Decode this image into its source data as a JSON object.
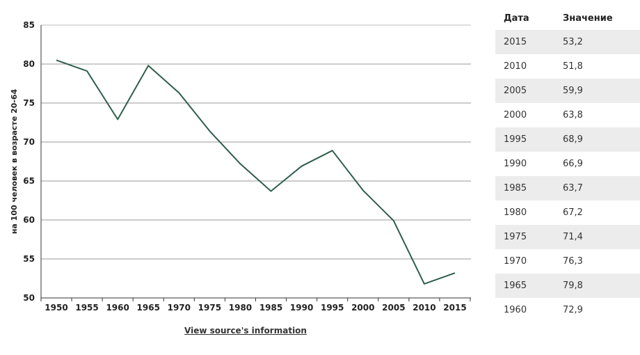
{
  "chart_data": {
    "type": "line",
    "ylabel": "на 100 человек в возрасте 20-64",
    "xlabel": "",
    "x": [
      "1950",
      "1955",
      "1960",
      "1965",
      "1970",
      "1975",
      "1980",
      "1985",
      "1990",
      "1995",
      "2000",
      "2005",
      "2010",
      "2015"
    ],
    "series": [
      {
        "values": [
          80.5,
          79.1,
          72.9,
          79.8,
          76.3,
          71.4,
          67.2,
          63.7,
          66.9,
          68.9,
          63.8,
          59.9,
          51.8,
          53.2
        ]
      }
    ],
    "ylim": [
      50,
      85
    ],
    "yticks": [
      50,
      55,
      60,
      65,
      70,
      75,
      80,
      85
    ],
    "grid": true,
    "line_color": "#2e5e4a"
  },
  "source_link": "View source's information",
  "table": {
    "headers": [
      "Дата",
      "Значение"
    ],
    "rows": [
      [
        "2015",
        "53,2"
      ],
      [
        "2010",
        "51,8"
      ],
      [
        "2005",
        "59,9"
      ],
      [
        "2000",
        "63,8"
      ],
      [
        "1995",
        "68,9"
      ],
      [
        "1990",
        "66,9"
      ],
      [
        "1985",
        "63,7"
      ],
      [
        "1980",
        "67,2"
      ],
      [
        "1975",
        "71,4"
      ],
      [
        "1970",
        "76,3"
      ],
      [
        "1965",
        "79,8"
      ],
      [
        "1960",
        "72,9"
      ]
    ]
  }
}
